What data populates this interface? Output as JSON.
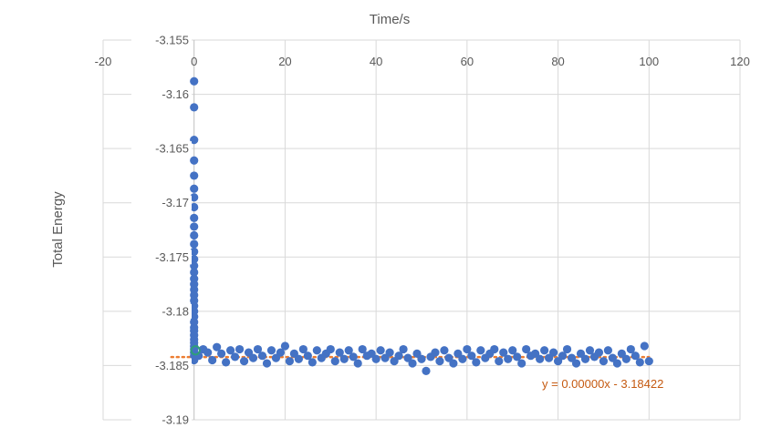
{
  "chart_data": {
    "type": "scatter",
    "title": "",
    "xlabel": "Time/s",
    "ylabel": "Total Energy",
    "xlim": [
      -20,
      120
    ],
    "ylim": [
      -3.19,
      -3.155
    ],
    "x_ticks": [
      "-20",
      "0",
      "20",
      "40",
      "60",
      "80",
      "100",
      "120"
    ],
    "y_ticks": [
      "-3.155",
      "-3.16",
      "-3.165",
      "-3.17",
      "-3.175",
      "-3.18",
      "-3.185",
      "-3.19"
    ],
    "x_axis_position": "top",
    "grid": true,
    "legend": "none",
    "series": [
      {
        "marker_color": "#4472c4",
        "x": [
          0,
          0,
          0,
          0,
          0,
          0,
          0,
          0,
          0,
          0,
          0,
          0,
          0,
          0,
          0,
          0,
          0,
          0,
          0,
          0,
          0,
          0,
          0,
          0,
          0,
          0,
          0,
          0,
          0,
          0,
          0,
          0,
          0,
          0,
          0,
          1,
          2,
          3,
          4,
          5,
          6,
          7,
          8,
          9,
          10,
          11,
          12,
          13,
          14,
          15,
          16,
          17,
          18,
          19,
          20,
          21,
          22,
          23,
          24,
          25,
          26,
          27,
          28,
          29,
          30,
          31,
          32,
          33,
          34,
          35,
          36,
          37,
          38,
          39,
          40,
          41,
          42,
          43,
          44,
          45,
          46,
          47,
          48,
          49,
          50,
          51,
          52,
          53,
          54,
          55,
          56,
          57,
          58,
          59,
          60,
          61,
          62,
          63,
          64,
          65,
          66,
          67,
          68,
          69,
          70,
          71,
          72,
          73,
          74,
          75,
          76,
          77,
          78,
          79,
          80,
          81,
          82,
          83,
          84,
          85,
          86,
          87,
          88,
          89,
          90,
          91,
          92,
          93,
          94,
          95,
          96,
          97,
          98,
          99,
          100
        ],
        "y": [
          -3.1588,
          -3.1612,
          -3.1642,
          -3.1661,
          -3.1675,
          -3.1687,
          -3.1695,
          -3.1704,
          -3.1714,
          -3.1722,
          -3.173,
          -3.1738,
          -3.1745,
          -3.1752,
          -3.1758,
          -3.1764,
          -3.177,
          -3.1775,
          -3.178,
          -3.1785,
          -3.179,
          -3.1795,
          -3.18,
          -3.1805,
          -3.181,
          -3.1815,
          -3.1818,
          -3.1822,
          -3.1826,
          -3.1829,
          -3.1832,
          -3.1835,
          -3.1838,
          -3.1841,
          -3.1845,
          -3.1841,
          -3.1835,
          -3.1838,
          -3.1845,
          -3.1833,
          -3.1839,
          -3.1847,
          -3.1836,
          -3.1842,
          -3.1835,
          -3.1846,
          -3.1838,
          -3.1843,
          -3.1835,
          -3.1841,
          -3.1848,
          -3.1836,
          -3.1843,
          -3.1838,
          -3.1832,
          -3.1846,
          -3.1839,
          -3.1844,
          -3.1835,
          -3.1841,
          -3.1847,
          -3.1836,
          -3.1843,
          -3.1839,
          -3.1835,
          -3.1846,
          -3.1838,
          -3.1844,
          -3.1836,
          -3.1842,
          -3.1848,
          -3.1835,
          -3.1841,
          -3.1839,
          -3.1844,
          -3.1836,
          -3.1843,
          -3.1838,
          -3.1846,
          -3.1841,
          -3.1835,
          -3.1843,
          -3.1848,
          -3.1839,
          -3.1844,
          -3.1855,
          -3.1842,
          -3.1838,
          -3.1846,
          -3.1836,
          -3.1843,
          -3.1848,
          -3.1839,
          -3.1844,
          -3.1835,
          -3.1841,
          -3.1847,
          -3.1836,
          -3.1843,
          -3.1839,
          -3.1835,
          -3.1846,
          -3.1838,
          -3.1844,
          -3.1836,
          -3.1842,
          -3.1848,
          -3.1835,
          -3.1841,
          -3.1839,
          -3.1844,
          -3.1836,
          -3.1843,
          -3.1838,
          -3.1846,
          -3.1841,
          -3.1835,
          -3.1843,
          -3.1848,
          -3.1839,
          -3.1844,
          -3.1836,
          -3.1842,
          -3.1838,
          -3.1846,
          -3.1836,
          -3.1843,
          -3.1848,
          -3.1839,
          -3.1844,
          -3.1835,
          -3.1841,
          -3.1847,
          -3.1832,
          -3.1846
        ]
      },
      {
        "marker_color": "#2e9e7a",
        "x": [
          0.3
        ],
        "y": [
          -3.1836
        ]
      }
    ],
    "trendline": {
      "type": "linear",
      "color": "#ed7d31",
      "slope": 0.0,
      "intercept": -3.18422,
      "x_range": [
        -5,
        100
      ],
      "equation_label": "y = 0.00000x - 3.18422"
    }
  }
}
